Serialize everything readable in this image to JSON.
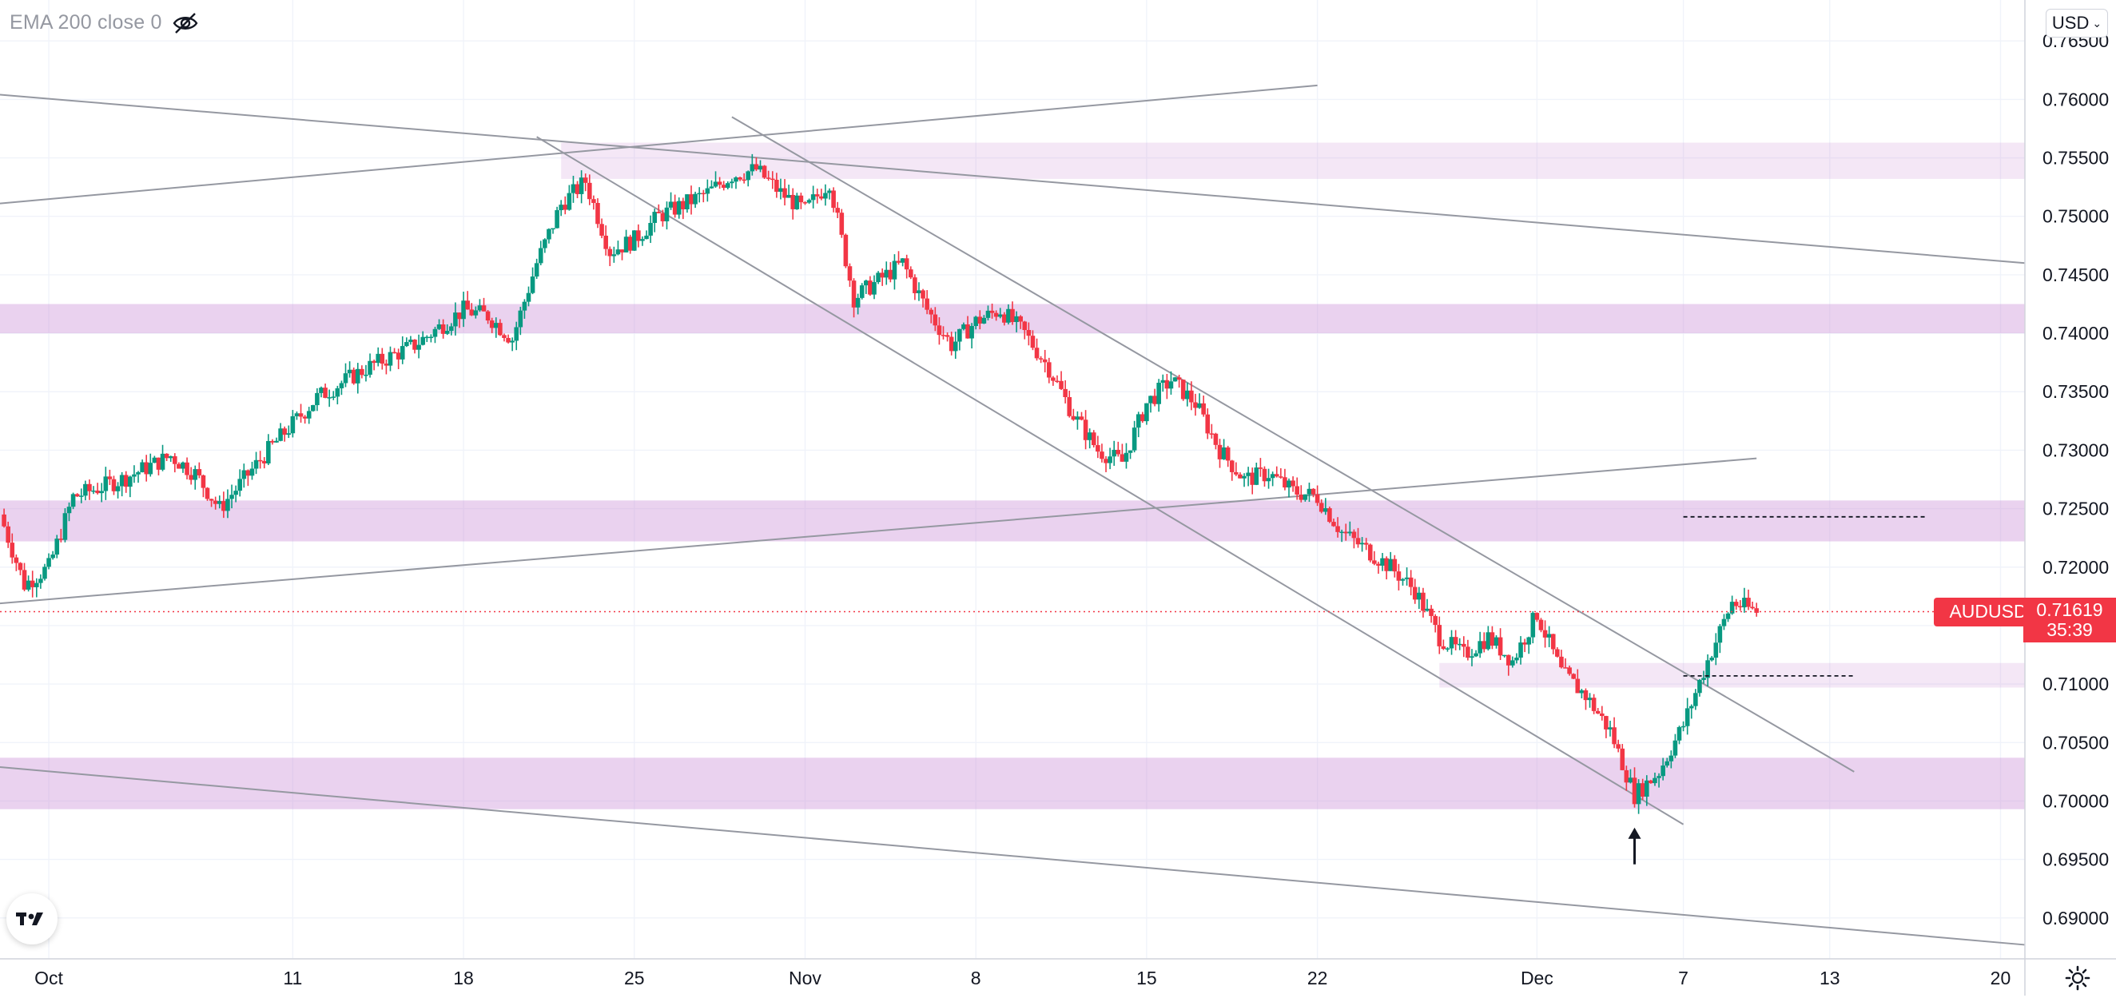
{
  "header": {
    "indicator_label": "EMA 200 close 0",
    "eye_icon": "eye-crossed-icon"
  },
  "currency_selector": {
    "label": "USD",
    "chevron_icon": "chevron-down-icon"
  },
  "symbol_tag": {
    "label": "AUDUSD",
    "color": "#f23645"
  },
  "last_price": {
    "value": "0.71619",
    "countdown": "35:39",
    "value_num": 0.71619
  },
  "footer": {
    "logo_icon": "tradingview-logo-icon",
    "settings_icon": "gear-icon"
  },
  "colors": {
    "up": "#089981",
    "down": "#f23645",
    "zone": "#e1bee7",
    "line": "#9598a1"
  },
  "chart_data": {
    "type": "candlestick",
    "symbol": "AUDUSD",
    "timeframe_note": "intraday candles, 29 Sep – 20 Dec",
    "x_tick_labels": [
      "Oct",
      "11",
      "18",
      "25",
      "Nov",
      "8",
      "15",
      "22",
      "Dec",
      "7",
      "13",
      "20"
    ],
    "x_tick_dates": [
      "2021-10-01",
      "2021-10-11",
      "2021-10-18",
      "2021-10-25",
      "2021-11-01",
      "2021-11-08",
      "2021-11-15",
      "2021-11-22",
      "2021-12-01",
      "2021-12-07",
      "2021-12-13",
      "2021-12-20"
    ],
    "y_tick_labels": [
      "0.76500",
      "0.76000",
      "0.75500",
      "0.75000",
      "0.74500",
      "0.74000",
      "0.73500",
      "0.73000",
      "0.72500",
      "0.72000",
      "0.71500",
      "0.71000",
      "0.70500",
      "0.70000",
      "0.69500",
      "0.69000"
    ],
    "ylim": [
      0.6865,
      0.7685
    ],
    "xlim": [
      "2021-09-29",
      "2021-12-21"
    ],
    "price_path": [
      [
        "2021-09-29",
        0.7245
      ],
      [
        "2021-09-30",
        0.7185
      ],
      [
        "2021-10-01",
        0.72
      ],
      [
        "2021-10-02",
        0.726
      ],
      [
        "2021-10-04",
        0.7275
      ],
      [
        "2021-10-06",
        0.7295
      ],
      [
        "2021-10-07",
        0.728
      ],
      [
        "2021-10-08",
        0.725
      ],
      [
        "2021-10-10",
        0.73
      ],
      [
        "2021-10-12",
        0.7345
      ],
      [
        "2021-10-14",
        0.737
      ],
      [
        "2021-10-16",
        0.739
      ],
      [
        "2021-10-18",
        0.742
      ],
      [
        "2021-10-19",
        0.7415
      ],
      [
        "2021-10-20",
        0.7395
      ],
      [
        "2021-10-21",
        0.746
      ],
      [
        "2021-10-22",
        0.751
      ],
      [
        "2021-10-23",
        0.753
      ],
      [
        "2021-10-24",
        0.747
      ],
      [
        "2021-10-25",
        0.748
      ],
      [
        "2021-10-26",
        0.75
      ],
      [
        "2021-10-27",
        0.751
      ],
      [
        "2021-10-28",
        0.752
      ],
      [
        "2021-10-29",
        0.7535
      ],
      [
        "2021-10-30",
        0.754
      ],
      [
        "2021-10-31",
        0.752
      ],
      [
        "2021-11-01",
        0.7505
      ],
      [
        "2021-11-02",
        0.753
      ],
      [
        "2021-11-03",
        0.743
      ],
      [
        "2021-11-04",
        0.7445
      ],
      [
        "2021-11-05",
        0.746
      ],
      [
        "2021-11-06",
        0.742
      ],
      [
        "2021-11-07",
        0.739
      ],
      [
        "2021-11-08",
        0.741
      ],
      [
        "2021-11-09",
        0.742
      ],
      [
        "2021-11-10",
        0.74
      ],
      [
        "2021-11-11",
        0.737
      ],
      [
        "2021-11-12",
        0.733
      ],
      [
        "2021-11-13",
        0.73
      ],
      [
        "2021-11-14",
        0.729
      ],
      [
        "2021-11-15",
        0.734
      ],
      [
        "2021-11-16",
        0.736
      ],
      [
        "2021-11-17",
        0.734
      ],
      [
        "2021-11-18",
        0.73
      ],
      [
        "2021-11-19",
        0.7275
      ],
      [
        "2021-11-20",
        0.728
      ],
      [
        "2021-11-21",
        0.7265
      ],
      [
        "2021-11-22",
        0.726
      ],
      [
        "2021-11-23",
        0.723
      ],
      [
        "2021-11-24",
        0.7215
      ],
      [
        "2021-11-25",
        0.72
      ],
      [
        "2021-11-26",
        0.718
      ],
      [
        "2021-11-27",
        0.714
      ],
      [
        "2021-11-28",
        0.7125
      ],
      [
        "2021-11-29",
        0.714
      ],
      [
        "2021-11-30",
        0.712
      ],
      [
        "2021-12-01",
        0.716
      ],
      [
        "2021-12-02",
        0.711
      ],
      [
        "2021-12-03",
        0.709
      ],
      [
        "2021-12-04",
        0.706
      ],
      [
        "2021-12-05",
        0.7005
      ],
      [
        "2021-12-06",
        0.7025
      ],
      [
        "2021-12-07",
        0.7065
      ],
      [
        "2021-12-08",
        0.712
      ],
      [
        "2021-12-09",
        0.717
      ],
      [
        "2021-12-10",
        0.71619
      ]
    ],
    "zones": [
      {
        "from": 0.7532,
        "to": 0.7563,
        "x_start": "2021-10-22",
        "opacity": "light"
      },
      {
        "from": 0.74,
        "to": 0.7425,
        "x_start": "2021-09-29",
        "opacity": "medium"
      },
      {
        "from": 0.7222,
        "to": 0.7257,
        "x_start": "2021-09-29",
        "opacity": "medium"
      },
      {
        "from": 0.7097,
        "to": 0.7118,
        "x_start": "2021-11-27",
        "opacity": "light"
      },
      {
        "from": 0.6993,
        "to": 0.7037,
        "x_start": "2021-09-29",
        "opacity": "medium"
      }
    ],
    "trendlines": [
      {
        "p1": [
          "2021-09-29",
          0.7604
        ],
        "p2": [
          "2021-12-21",
          0.746
        ]
      },
      {
        "p1": [
          "2021-09-29",
          0.7511
        ],
        "p2": [
          "2021-11-22",
          0.7612
        ]
      },
      {
        "p1": [
          "2021-09-29",
          0.7169
        ],
        "p2": [
          "2021-12-10",
          0.7293
        ]
      },
      {
        "p1": [
          "2021-09-29",
          0.7029
        ],
        "p2": [
          "2021-12-21",
          0.6877
        ]
      },
      {
        "p1": [
          "2021-10-21",
          0.7568
        ],
        "p2": [
          "2021-12-07",
          0.698
        ]
      },
      {
        "p1": [
          "2021-10-29",
          0.7585
        ],
        "p2": [
          "2021-12-14",
          0.7025
        ]
      }
    ],
    "dashed_levels": [
      {
        "price": 0.7243,
        "x_start": "2021-12-07",
        "x_end": "2021-12-17"
      },
      {
        "price": 0.7107,
        "x_start": "2021-12-07",
        "x_end": "2021-12-14"
      }
    ],
    "arrow_marker": {
      "date": "2021-12-05",
      "pointing": "up",
      "price": 0.698
    },
    "last_price_line": 0.71619,
    "grid": true,
    "legend": "none"
  }
}
